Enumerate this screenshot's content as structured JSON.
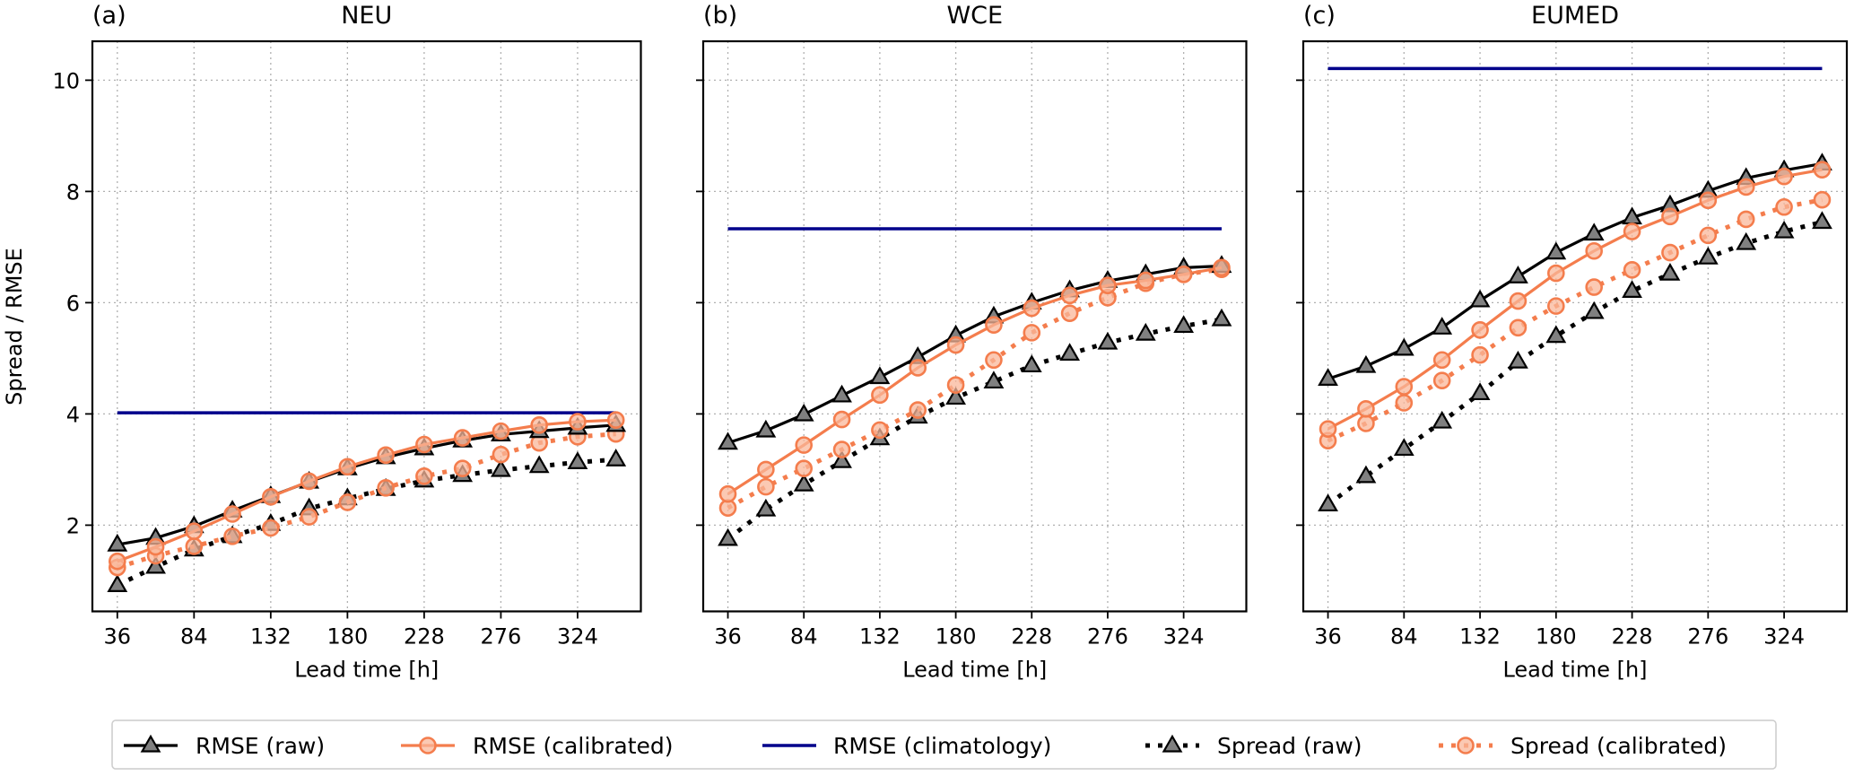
{
  "figure": {
    "ylabel": "Spread / RMSE",
    "xlabel": "Lead time [h]"
  },
  "colors": {
    "rmse_raw": "#000000",
    "rmse_cal": "#f47d4d",
    "rmse_clim": "#00008b",
    "spread_raw": "#000000",
    "spread_cal": "#f47d4d",
    "marker_gray": "#808080",
    "marker_light": "#f9b79a"
  },
  "legend": {
    "position": "bottom-center",
    "items": [
      {
        "key": "rmse_raw",
        "label": "RMSE (raw)"
      },
      {
        "key": "rmse_cal",
        "label": "RMSE (calibrated)"
      },
      {
        "key": "rmse_clim",
        "label": "RMSE (climatology)"
      },
      {
        "key": "spread_raw",
        "label": "Spread (raw)"
      },
      {
        "key": "spread_cal",
        "label": "Spread (calibrated)"
      }
    ]
  },
  "chart_data": [
    {
      "type": "line",
      "panel_label": "(a)",
      "title": "NEU",
      "xlabel": "Lead time [h]",
      "ylabel": "Spread / RMSE",
      "x": [
        36,
        60,
        84,
        108,
        132,
        156,
        180,
        204,
        228,
        252,
        276,
        300,
        324,
        348
      ],
      "xticks": [
        36,
        84,
        132,
        180,
        228,
        276,
        324
      ],
      "yticks": [
        2,
        4,
        6,
        8,
        10
      ],
      "xlim": [
        20.4,
        363.6
      ],
      "ylim": [
        0.45,
        10.7
      ],
      "grid": true,
      "series": [
        {
          "key": "rmse_raw",
          "name": "RMSE (raw)",
          "values": [
            1.65,
            1.77,
            1.98,
            2.26,
            2.52,
            2.78,
            3.02,
            3.22,
            3.38,
            3.52,
            3.63,
            3.69,
            3.75,
            3.8
          ]
        },
        {
          "key": "rmse_cal",
          "name": "RMSE (calibrated)",
          "values": [
            1.35,
            1.61,
            1.89,
            2.2,
            2.51,
            2.79,
            3.05,
            3.26,
            3.45,
            3.57,
            3.69,
            3.8,
            3.86,
            3.89
          ]
        },
        {
          "key": "rmse_clim",
          "name": "RMSE (climatology)",
          "values": [
            4.02,
            4.02,
            4.02,
            4.02,
            4.02,
            4.02,
            4.02,
            4.02,
            4.02,
            4.02,
            4.02,
            4.02,
            4.02,
            4.02
          ]
        },
        {
          "key": "spread_raw",
          "name": "Spread (raw)",
          "values": [
            0.92,
            1.25,
            1.56,
            1.8,
            2.02,
            2.3,
            2.48,
            2.65,
            2.8,
            2.9,
            2.99,
            3.06,
            3.13,
            3.18
          ]
        },
        {
          "key": "spread_cal",
          "name": "Spread (calibrated)",
          "values": [
            1.24,
            1.45,
            1.62,
            1.8,
            1.95,
            2.15,
            2.41,
            2.67,
            2.88,
            3.02,
            3.27,
            3.48,
            3.59,
            3.64
          ]
        }
      ]
    },
    {
      "type": "line",
      "panel_label": "(b)",
      "title": "WCE",
      "xlabel": "Lead time [h]",
      "ylabel": "",
      "x": [
        36,
        60,
        84,
        108,
        132,
        156,
        180,
        204,
        228,
        252,
        276,
        300,
        324,
        348
      ],
      "xticks": [
        36,
        84,
        132,
        180,
        228,
        276,
        324
      ],
      "yticks": [
        2,
        4,
        6,
        8,
        10
      ],
      "xlim": [
        20.4,
        363.6
      ],
      "ylim": [
        0.45,
        10.7
      ],
      "grid": true,
      "series": [
        {
          "key": "rmse_raw",
          "name": "RMSE (raw)",
          "values": [
            3.48,
            3.7,
            3.99,
            4.33,
            4.66,
            5.02,
            5.41,
            5.75,
            6.0,
            6.22,
            6.39,
            6.51,
            6.63,
            6.66
          ]
        },
        {
          "key": "rmse_cal",
          "name": "RMSE (calibrated)",
          "values": [
            2.56,
            3.0,
            3.44,
            3.9,
            4.34,
            4.83,
            5.24,
            5.6,
            5.9,
            6.13,
            6.31,
            6.4,
            6.51,
            6.63
          ]
        },
        {
          "key": "rmse_clim",
          "name": "RMSE (climatology)",
          "values": [
            7.33,
            7.33,
            7.33,
            7.33,
            7.33,
            7.33,
            7.33,
            7.33,
            7.33,
            7.33,
            7.33,
            7.33,
            7.33,
            7.33
          ]
        },
        {
          "key": "spread_raw",
          "name": "Spread (raw)",
          "values": [
            1.75,
            2.28,
            2.73,
            3.15,
            3.56,
            3.95,
            4.29,
            4.58,
            4.87,
            5.08,
            5.28,
            5.44,
            5.58,
            5.7
          ]
        },
        {
          "key": "spread_cal",
          "name": "Spread (calibrated)",
          "values": [
            2.31,
            2.69,
            3.02,
            3.36,
            3.71,
            4.07,
            4.52,
            4.97,
            5.46,
            5.81,
            6.09,
            6.35,
            6.51,
            6.6
          ]
        }
      ]
    },
    {
      "type": "line",
      "panel_label": "(c)",
      "title": "EUMED",
      "xlabel": "Lead time [h]",
      "ylabel": "",
      "x": [
        36,
        60,
        84,
        108,
        132,
        156,
        180,
        204,
        228,
        252,
        276,
        300,
        324,
        348
      ],
      "xticks": [
        36,
        84,
        132,
        180,
        228,
        276,
        324
      ],
      "yticks": [
        2,
        4,
        6,
        8,
        10
      ],
      "xlim": [
        20.4,
        363.6
      ],
      "ylim": [
        0.45,
        10.7
      ],
      "grid": true,
      "series": [
        {
          "key": "rmse_raw",
          "name": "RMSE (raw)",
          "values": [
            4.63,
            4.86,
            5.17,
            5.55,
            6.04,
            6.47,
            6.9,
            7.24,
            7.53,
            7.75,
            8.01,
            8.24,
            8.38,
            8.5
          ]
        },
        {
          "key": "rmse_cal",
          "name": "RMSE (calibrated)",
          "values": [
            3.73,
            4.09,
            4.49,
            4.97,
            5.51,
            6.03,
            6.53,
            6.93,
            7.28,
            7.55,
            7.84,
            8.08,
            8.27,
            8.39
          ]
        },
        {
          "key": "rmse_clim",
          "name": "RMSE (climatology)",
          "values": [
            10.21,
            10.21,
            10.21,
            10.21,
            10.21,
            10.21,
            10.21,
            10.21,
            10.21,
            10.21,
            10.21,
            10.21,
            10.21,
            10.21
          ]
        },
        {
          "key": "spread_raw",
          "name": "Spread (raw)",
          "values": [
            2.37,
            2.88,
            3.37,
            3.86,
            4.37,
            4.94,
            5.4,
            5.83,
            6.21,
            6.52,
            6.81,
            7.07,
            7.28,
            7.45
          ]
        },
        {
          "key": "spread_cal",
          "name": "Spread (calibrated)",
          "values": [
            3.52,
            3.83,
            4.2,
            4.6,
            5.06,
            5.55,
            5.94,
            6.28,
            6.59,
            6.9,
            7.21,
            7.5,
            7.72,
            7.85
          ]
        }
      ]
    }
  ]
}
